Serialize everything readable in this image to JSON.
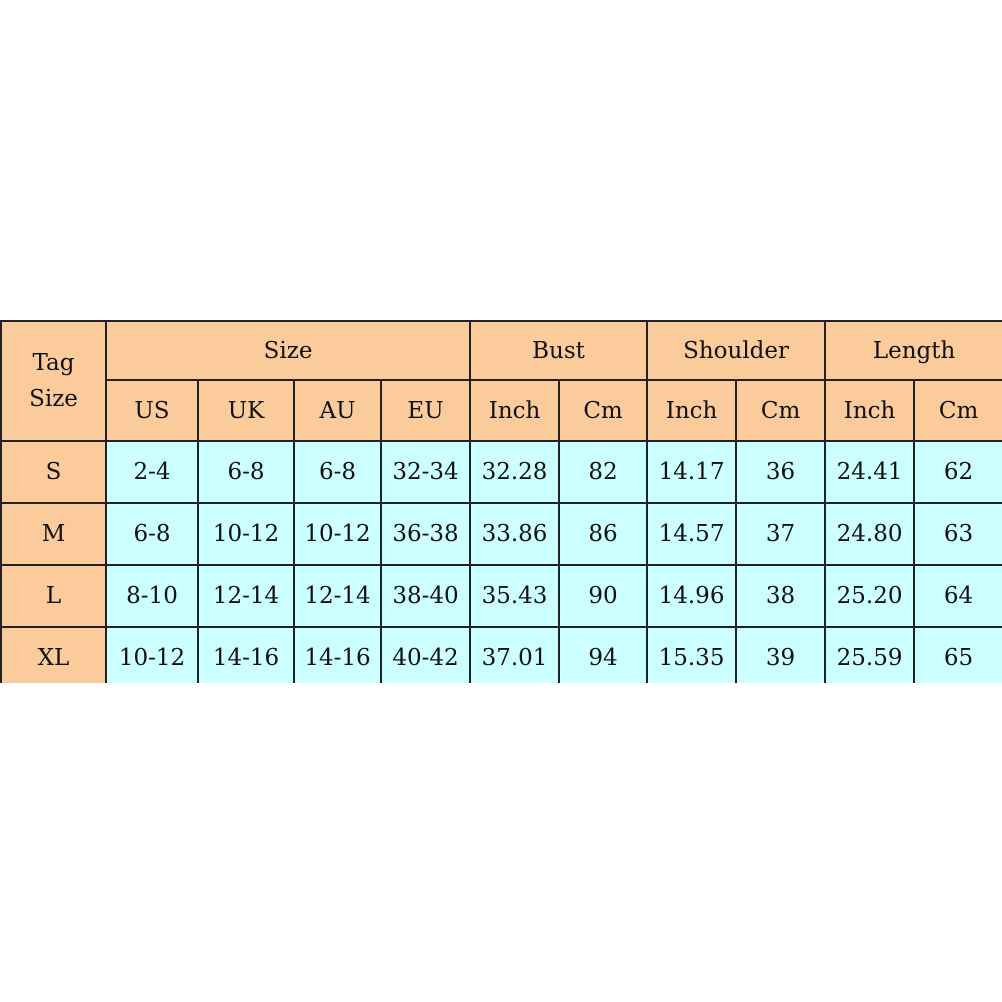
{
  "colors": {
    "header": "#fbcb9b",
    "cell": "#ccffff"
  },
  "headers": {
    "tag": "Tag Size",
    "groups": [
      "Size",
      "Bust",
      "Shoulder",
      "Length"
    ],
    "sub": [
      "US",
      "UK",
      "AU",
      "EU",
      "Inch",
      "Cm",
      "Inch",
      "Cm",
      "Inch",
      "Cm"
    ]
  },
  "rows": [
    {
      "tag": "S",
      "cells": [
        "2-4",
        "6-8",
        "6-8",
        "32-34",
        "32.28",
        "82",
        "14.17",
        "36",
        "24.41",
        "62"
      ]
    },
    {
      "tag": "M",
      "cells": [
        "6-8",
        "10-12",
        "10-12",
        "36-38",
        "33.86",
        "86",
        "14.57",
        "37",
        "24.80",
        "63"
      ]
    },
    {
      "tag": "L",
      "cells": [
        "8-10",
        "12-14",
        "12-14",
        "38-40",
        "35.43",
        "90",
        "14.96",
        "38",
        "25.20",
        "64"
      ]
    },
    {
      "tag": "XL",
      "cells": [
        "10-12",
        "14-16",
        "14-16",
        "40-42",
        "37.01",
        "94",
        "15.35",
        "39",
        "25.59",
        "65"
      ]
    }
  ]
}
